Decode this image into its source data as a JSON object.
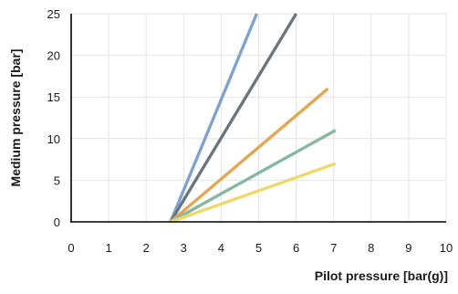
{
  "chart_data": {
    "type": "line",
    "title": "",
    "xlabel": "Pilot pressure [bar(g)]",
    "ylabel": "Medium pressure [bar]",
    "xlim": [
      0,
      10
    ],
    "ylim": [
      0,
      25
    ],
    "xticks": [
      0,
      1,
      2,
      3,
      4,
      5,
      6,
      7,
      8,
      9,
      10
    ],
    "yticks": [
      0,
      5,
      10,
      15,
      20,
      25
    ],
    "grid": true,
    "legend": "none",
    "series": [
      {
        "color": "#7fa3cc",
        "x": [
          2.65,
          4.95
        ],
        "y": [
          0,
          25
        ]
      },
      {
        "color": "#6e767d",
        "x": [
          2.65,
          6.0
        ],
        "y": [
          0,
          25
        ]
      },
      {
        "color": "#e3a752",
        "x": [
          2.65,
          6.85
        ],
        "y": [
          0,
          16
        ]
      },
      {
        "color": "#86b8a0",
        "x": [
          2.65,
          7.05
        ],
        "y": [
          0,
          11
        ]
      },
      {
        "color": "#ecd96a",
        "x": [
          2.65,
          7.05
        ],
        "y": [
          0,
          7
        ]
      }
    ]
  }
}
